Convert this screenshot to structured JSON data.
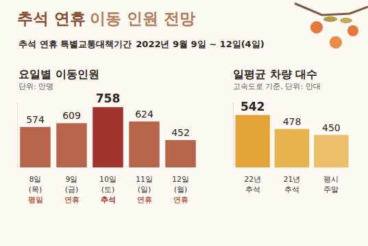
{
  "title": "추석 연휴 이동 인원 전망",
  "subtitle": "추석 연휴 특별교통대책기간 2022년 9월 9일 ~ 12일(4일)",
  "chart_data": [
    {
      "type": "bar",
      "title": "요일별 이동인원",
      "subtitle": "단위: 만명",
      "categories": [
        "8일\n(목)\n평일",
        "9일\n(금)\n연휴",
        "10일\n(토)\n추석",
        "11일\n(일)\n연휴",
        "12일\n(월)\n연휴"
      ],
      "values": [
        574,
        609,
        758,
        624,
        452
      ],
      "colors": [
        "#b8664b",
        "#b8664b",
        "#a3342c",
        "#b8664b",
        "#b8664b"
      ],
      "ylim": [
        200,
        800
      ],
      "grid": false,
      "data_labels": true,
      "tick_labels": "x"
    },
    {
      "type": "bar",
      "title": "일평균 차량 대수",
      "subtitle": "고속도로 기준, 단위: 만대",
      "categories": [
        "22년\n추석",
        "21년\n추석",
        "평시\n주말"
      ],
      "values": [
        542,
        478,
        450
      ],
      "colors": [
        "#e4a43a",
        "#e8b24f",
        "#ecbe6c"
      ],
      "ylim": [
        300,
        600
      ],
      "grid": false,
      "data_labels": true,
      "tick_labels": "x"
    }
  ]
}
